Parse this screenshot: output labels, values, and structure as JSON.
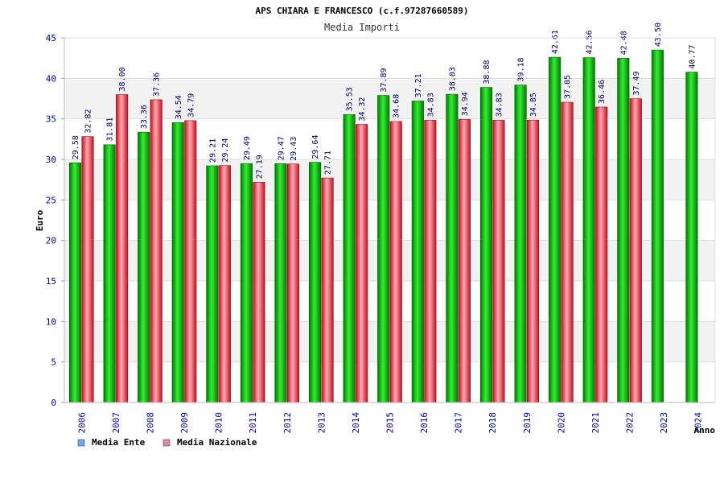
{
  "chart_data": {
    "type": "bar",
    "title": "APS CHIARA E FRANCESCO (c.f.97287660589)",
    "subtitle": "Media Importi",
    "ylabel": "Euro",
    "xlabel": "Anno",
    "ylim": [
      0,
      45
    ],
    "yticks": [
      "0",
      "5",
      "10",
      "15",
      "20",
      "25",
      "30",
      "35",
      "40",
      "45"
    ],
    "grid": true,
    "legend": "bottom-left",
    "categories": [
      "2006",
      "2007",
      "2008",
      "2009",
      "2010",
      "2011",
      "2012",
      "2013",
      "2014",
      "2015",
      "2016",
      "2017",
      "2018",
      "2019",
      "2020",
      "2021",
      "2022",
      "2023",
      "2024"
    ],
    "series": [
      {
        "name": "Media Ente",
        "color": "#00aa00",
        "legend_color": "#66aaee",
        "values": [
          29.58,
          31.81,
          33.36,
          34.54,
          29.21,
          29.49,
          29.47,
          29.64,
          35.53,
          37.89,
          37.21,
          38.03,
          38.88,
          39.18,
          42.61,
          42.56,
          42.48,
          43.5,
          40.77
        ],
        "labels": [
          "29.58",
          "31.81",
          "33.36",
          "34.54",
          "29.21",
          "29.49",
          "29.47",
          "29.64",
          "35.53",
          "37.89",
          "37.21",
          "38.03",
          "38.88",
          "39.18",
          "42.61",
          "42.56",
          "42.48",
          "43.50",
          "40.77"
        ]
      },
      {
        "name": "Media Nazionale",
        "color": "#dd2233",
        "legend_color": "#dd88aa",
        "values": [
          32.82,
          38.0,
          37.36,
          34.79,
          29.24,
          27.19,
          29.43,
          27.71,
          34.32,
          34.68,
          34.83,
          34.94,
          34.83,
          34.85,
          37.05,
          36.46,
          37.49,
          null,
          null
        ],
        "labels": [
          "32.82",
          "38.00",
          "37.36",
          "34.79",
          "29.24",
          "27.19",
          "29.43",
          "27.71",
          "34.32",
          "34.68",
          "34.83",
          "34.94",
          "34.83",
          "34.85",
          "37.05",
          "36.46",
          "37.49",
          null,
          null
        ]
      }
    ]
  }
}
